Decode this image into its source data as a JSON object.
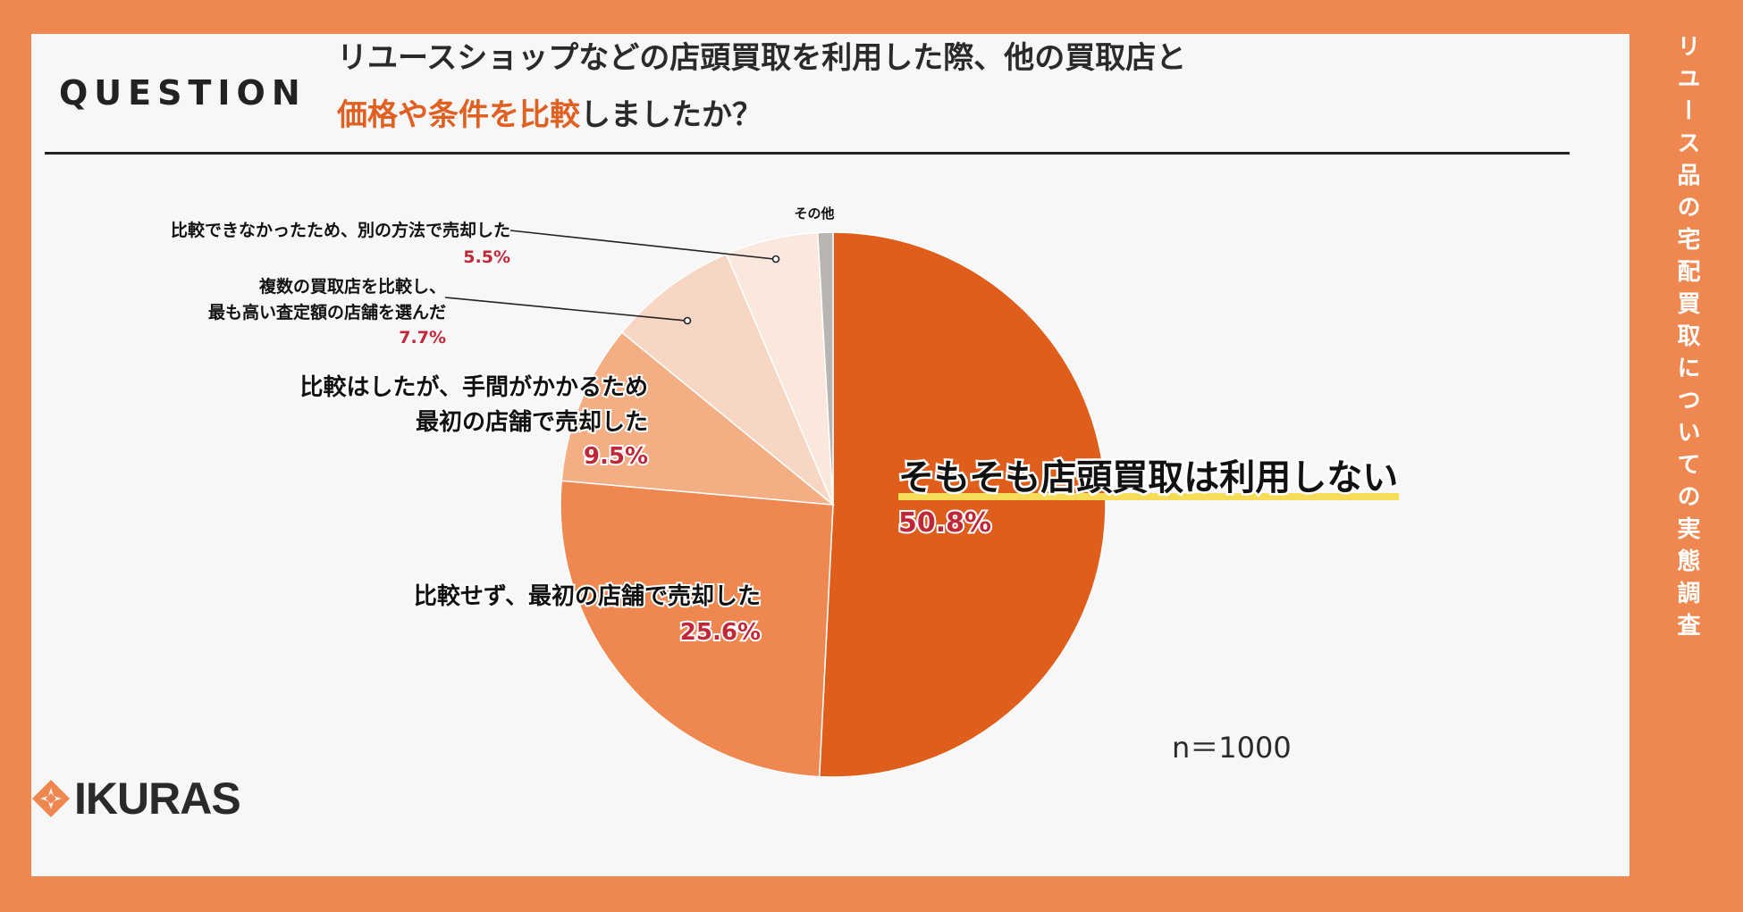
{
  "question": {
    "label": "QUESTION",
    "line1": "リユースショップなどの店頭買取を利用した際、他の買取店と",
    "line2_accent": "価格や条件を比較",
    "line2_rest": "しましたか？"
  },
  "side_title": "リユース品の宅配買取についての実態調査",
  "sample_size": "n＝1000",
  "logo": {
    "text": "IKURAS",
    "icon": "diamond-logo-icon"
  },
  "colors": {
    "frame": "#EE8850",
    "accent": "#E06022",
    "percent": "#C0283A",
    "highlight": "#F7DC5A"
  },
  "chart_data": {
    "type": "pie",
    "start": "12 o'clock, clockwise",
    "slices": [
      {
        "label": "そもそも店頭買取は利用しない",
        "value": 50.8,
        "display": "50.8%",
        "color": "#E05E1B"
      },
      {
        "label": "比較せず、最初の店舗で売却した",
        "value": 25.6,
        "display": "25.6%",
        "color": "#EE8850"
      },
      {
        "label": "比較はしたが、手間がかかるため最初の店舗で売却した",
        "value": 9.5,
        "display": "9.5%",
        "color": "#F3AE84"
      },
      {
        "label": "複数の買取店を比較し、最も高い査定額の店舗を選んだ",
        "value": 7.7,
        "display": "7.7%",
        "color": "#F7D6C3"
      },
      {
        "label": "比較できなかったため、別の方法で売却した",
        "value": 5.5,
        "display": "5.5%",
        "color": "#FAE8DD"
      },
      {
        "label": "その他",
        "value": 0.9,
        "display": "",
        "color": "#B9B5B2"
      }
    ]
  },
  "labels": {
    "s0": {
      "lines": [
        "そもそも店頭買取は利用しない"
      ],
      "pct": "50.8%"
    },
    "s1": {
      "lines": [
        "比較せず、最初の店舗で売却した"
      ],
      "pct": "25.6%"
    },
    "s2": {
      "lines": [
        "比較はしたが、手間がかかるため",
        "最初の店舗で売却した"
      ],
      "pct": "9.5%"
    },
    "s3": {
      "lines": [
        "複数の買取店を比較し、",
        "最も高い査定額の店舗を選んだ"
      ],
      "pct": "7.7%"
    },
    "s4": {
      "lines": [
        "比較できなかったため、別の方法で売却した"
      ],
      "pct": "5.5%"
    },
    "s5": {
      "lines": [
        "その他"
      ]
    }
  }
}
